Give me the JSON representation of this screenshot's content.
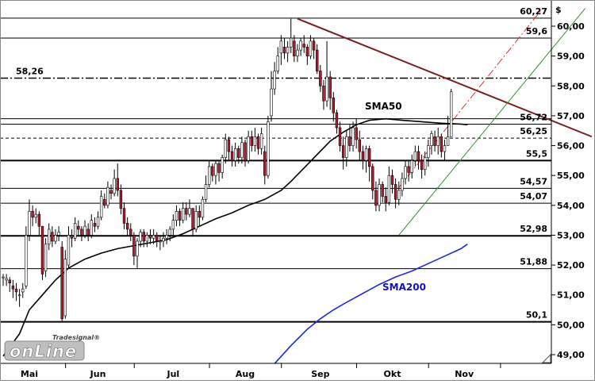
{
  "chart_data": {
    "type": "candlestick",
    "currency_symbol": "$",
    "ylim": [
      48.8,
      60.65
    ],
    "x_range": [
      0,
      164
    ],
    "x_ticks": [
      {
        "label": "Mai",
        "x": 8
      },
      {
        "label": "Jun",
        "x": 29
      },
      {
        "label": "Jul",
        "x": 52
      },
      {
        "label": "Aug",
        "x": 74
      },
      {
        "label": "Sep",
        "x": 97
      },
      {
        "label": "Okt",
        "x": 119
      },
      {
        "label": "Nov",
        "x": 141
      }
    ],
    "y_ticks": [
      49.0,
      50.0,
      51.0,
      52.0,
      53.0,
      54.0,
      55.0,
      56.0,
      57.0,
      58.0,
      59.0,
      60.0
    ],
    "y_tick_labels": [
      "49,00",
      "50,00",
      "51,00",
      "52,00",
      "53,00",
      "54,00",
      "55,00",
      "56,00",
      "57,00",
      "58,00",
      "59,00",
      "60,00"
    ],
    "levels": [
      {
        "value": 60.27,
        "label": "60,27",
        "style": "solid",
        "weight": 1
      },
      {
        "value": 59.6,
        "label": "59,6",
        "style": "solid",
        "weight": 1
      },
      {
        "value": 58.26,
        "label": "58,26",
        "style": "dashdot",
        "weight": 1.5
      },
      {
        "value": 56.72,
        "label": "56,72",
        "style": "solid",
        "weight": 1
      },
      {
        "value": 56.25,
        "label": "56,25",
        "style": "dashed",
        "weight": 1
      },
      {
        "value": 55.5,
        "label": "55,5",
        "style": "solid",
        "weight": 2
      },
      {
        "value": 54.57,
        "label": "54,57",
        "style": "solid",
        "weight": 1
      },
      {
        "value": 54.07,
        "label": "54,07",
        "style": "solid",
        "weight": 1
      },
      {
        "value": 52.98,
        "label": "52,98",
        "style": "solid",
        "weight": 2
      },
      {
        "value": 51.88,
        "label": "51,88",
        "style": "solid",
        "weight": 1
      },
      {
        "value": 50.1,
        "label": "50,1",
        "style": "solid",
        "weight": 2
      }
    ],
    "extra_levels": [
      {
        "value": 56.9
      }
    ],
    "trendlines": [
      {
        "name": "resistance",
        "color": "#7a1e1e",
        "style": "solid",
        "points": [
          [
            90,
            60.25
          ],
          [
            180,
            56.3
          ]
        ]
      },
      {
        "name": "support",
        "color": "#2f8f2f",
        "style": "solid",
        "points": [
          [
            121,
            53.0
          ],
          [
            178,
            60.6
          ]
        ]
      },
      {
        "name": "channel",
        "color": "#e03030",
        "style": "dashdot",
        "points": [
          [
            121,
            54.6
          ],
          [
            165,
            60.6
          ]
        ]
      }
    ],
    "series": [
      {
        "name": "SMA50",
        "label_color": "#000000",
        "color": "#000000",
        "points": [
          [
            0,
            48.95
          ],
          [
            5,
            49.7
          ],
          [
            8,
            50.5
          ],
          [
            12,
            51.0
          ],
          [
            16,
            51.5
          ],
          [
            20,
            51.9
          ],
          [
            25,
            52.2
          ],
          [
            30,
            52.4
          ],
          [
            35,
            52.55
          ],
          [
            40,
            52.65
          ],
          [
            45,
            52.75
          ],
          [
            50,
            52.85
          ],
          [
            55,
            53.05
          ],
          [
            60,
            53.3
          ],
          [
            65,
            53.55
          ],
          [
            70,
            53.75
          ],
          [
            75,
            54.0
          ],
          [
            80,
            54.2
          ],
          [
            85,
            54.5
          ],
          [
            88,
            54.8
          ],
          [
            92,
            55.25
          ],
          [
            96,
            55.7
          ],
          [
            100,
            56.15
          ],
          [
            104,
            56.45
          ],
          [
            108,
            56.7
          ],
          [
            112,
            56.85
          ],
          [
            117,
            56.9
          ],
          [
            122,
            56.85
          ],
          [
            128,
            56.8
          ],
          [
            134,
            56.75
          ],
          [
            140,
            56.72
          ],
          [
            142,
            56.7
          ]
        ]
      },
      {
        "name": "SMA200",
        "label_color": "#1010c0",
        "color": "#1a2ad8",
        "points": [
          [
            83,
            48.7
          ],
          [
            88,
            49.3
          ],
          [
            93,
            49.85
          ],
          [
            97,
            50.2
          ],
          [
            101,
            50.5
          ],
          [
            105,
            50.75
          ],
          [
            110,
            51.05
          ],
          [
            115,
            51.35
          ],
          [
            120,
            51.6
          ],
          [
            125,
            51.8
          ],
          [
            130,
            52.05
          ],
          [
            135,
            52.3
          ],
          [
            140,
            52.55
          ],
          [
            142,
            52.7
          ]
        ]
      }
    ],
    "candles": [
      [
        0,
        51.6,
        51.6,
        51.7,
        51.3
      ],
      [
        1,
        51.5,
        51.55,
        51.7,
        51.3
      ],
      [
        2,
        51.5,
        51.4,
        51.6,
        51.1
      ],
      [
        3,
        51.3,
        51.2,
        51.5,
        50.9
      ],
      [
        4,
        51.2,
        51.1,
        51.4,
        50.8
      ],
      [
        5,
        51.0,
        51.0,
        51.2,
        50.6
      ],
      [
        6,
        51.1,
        51.2,
        51.4,
        50.9
      ],
      [
        7,
        51.3,
        53.0,
        53.3,
        51.2
      ],
      [
        8,
        53.0,
        53.8,
        54.2,
        52.8
      ],
      [
        9,
        53.8,
        53.6,
        54.0,
        53.3
      ],
      [
        10,
        53.6,
        53.7,
        53.9,
        53.4
      ],
      [
        11,
        53.7,
        53.3,
        53.8,
        53.0
      ],
      [
        12,
        53.3,
        51.7,
        53.3,
        51.5
      ],
      [
        13,
        51.8,
        52.7,
        52.9,
        51.6
      ],
      [
        14,
        52.7,
        53.2,
        53.4,
        52.5
      ],
      [
        15,
        53.1,
        52.8,
        53.3,
        52.6
      ],
      [
        16,
        52.8,
        53.0,
        53.2,
        52.7
      ],
      [
        17,
        53.0,
        53.1,
        53.3,
        52.8
      ],
      [
        18,
        52.6,
        50.2,
        52.8,
        50.1
      ],
      [
        19,
        50.3,
        52.2,
        52.5,
        50.2
      ],
      [
        20,
        52.0,
        53.0,
        53.3,
        51.9
      ],
      [
        21,
        53.0,
        52.9,
        53.2,
        52.6
      ],
      [
        22,
        52.9,
        53.4,
        53.6,
        52.8
      ],
      [
        23,
        53.3,
        53.2,
        53.5,
        53.0
      ],
      [
        24,
        53.2,
        53.0,
        53.3,
        52.8
      ],
      [
        25,
        53.0,
        53.3,
        53.5,
        52.9
      ],
      [
        26,
        53.2,
        53.0,
        53.4,
        52.8
      ],
      [
        27,
        53.0,
        53.5,
        53.7,
        52.9
      ],
      [
        28,
        53.4,
        53.3,
        53.6,
        53.1
      ],
      [
        29,
        53.3,
        53.6,
        53.8,
        53.2
      ],
      [
        30,
        53.6,
        54.3,
        54.5,
        53.5
      ],
      [
        31,
        54.2,
        54.0,
        54.4,
        53.9
      ],
      [
        32,
        54.0,
        54.6,
        54.8,
        53.9
      ],
      [
        33,
        54.5,
        54.4,
        54.7,
        54.2
      ],
      [
        34,
        54.4,
        54.9,
        55.2,
        54.3
      ],
      [
        35,
        54.9,
        54.5,
        55.4,
        54.3
      ],
      [
        36,
        54.5,
        53.9,
        54.7,
        53.7
      ],
      [
        37,
        53.9,
        53.4,
        54.1,
        53.2
      ],
      [
        38,
        53.4,
        53.2,
        53.6,
        53.0
      ],
      [
        39,
        53.2,
        53.0,
        53.4,
        52.8
      ],
      [
        40,
        53.0,
        52.3,
        53.1,
        52.0
      ],
      [
        41,
        52.3,
        52.8,
        52.9,
        51.9
      ],
      [
        42,
        52.8,
        53.1,
        53.2,
        52.6
      ],
      [
        43,
        53.1,
        52.8,
        53.2,
        52.6
      ],
      [
        44,
        52.8,
        53.0,
        53.1,
        52.6
      ],
      [
        45,
        53.0,
        52.9,
        53.2,
        52.7
      ],
      [
        46,
        52.9,
        53.0,
        53.2,
        52.7
      ],
      [
        47,
        53.0,
        52.8,
        53.1,
        52.6
      ],
      [
        48,
        52.8,
        52.8,
        53.0,
        52.5
      ],
      [
        49,
        52.8,
        52.9,
        53.1,
        52.6
      ],
      [
        50,
        52.9,
        53.0,
        53.2,
        52.7
      ],
      [
        51,
        53.0,
        53.2,
        53.3,
        52.8
      ],
      [
        52,
        53.2,
        53.5,
        53.7,
        53.0
      ],
      [
        53,
        53.5,
        53.8,
        54.0,
        53.3
      ],
      [
        54,
        53.8,
        53.5,
        53.9,
        53.3
      ],
      [
        55,
        53.5,
        53.9,
        54.1,
        53.4
      ],
      [
        56,
        53.9,
        53.7,
        54.1,
        53.5
      ],
      [
        57,
        53.7,
        53.9,
        54.2,
        53.6
      ],
      [
        58,
        53.9,
        53.2,
        53.9,
        53.0
      ],
      [
        59,
        53.2,
        53.8,
        54.0,
        53.1
      ],
      [
        60,
        53.8,
        53.6,
        54.0,
        53.3
      ],
      [
        61,
        53.6,
        54.2,
        54.3,
        53.5
      ],
      [
        62,
        54.2,
        54.7,
        55.0,
        54.1
      ],
      [
        63,
        54.7,
        55.3,
        55.5,
        54.6
      ],
      [
        64,
        55.3,
        55.0,
        55.4,
        54.8
      ],
      [
        65,
        55.0,
        55.4,
        55.5,
        54.7
      ],
      [
        66,
        55.4,
        55.1,
        55.5,
        54.8
      ],
      [
        67,
        55.1,
        55.6,
        55.7,
        54.9
      ],
      [
        68,
        55.6,
        56.2,
        56.4,
        55.4
      ],
      [
        69,
        56.2,
        55.8,
        56.3,
        55.5
      ],
      [
        70,
        55.8,
        55.5,
        56.0,
        55.3
      ],
      [
        71,
        55.5,
        55.9,
        56.1,
        55.3
      ],
      [
        72,
        55.9,
        55.6,
        56.0,
        55.4
      ],
      [
        73,
        55.6,
        56.1,
        56.3,
        55.4
      ],
      [
        74,
        56.1,
        55.5,
        56.2,
        55.3
      ],
      [
        75,
        55.5,
        56.3,
        56.5,
        55.4
      ],
      [
        76,
        56.3,
        56.0,
        56.5,
        55.8
      ],
      [
        77,
        56.0,
        56.3,
        56.6,
        55.8
      ],
      [
        78,
        56.3,
        55.9,
        56.4,
        55.7
      ],
      [
        79,
        55.9,
        56.4,
        56.6,
        55.7
      ],
      [
        80,
        55.8,
        55.0,
        56.0,
        54.7
      ],
      [
        81,
        55.0,
        56.8,
        57.0,
        54.9
      ],
      [
        82,
        57.0,
        57.9,
        58.5,
        56.8
      ],
      [
        83,
        57.9,
        58.5,
        58.8,
        57.7
      ],
      [
        84,
        58.5,
        59.0,
        59.3,
        58.4
      ],
      [
        85,
        59.1,
        59.5,
        59.7,
        58.7
      ],
      [
        86,
        59.3,
        59.1,
        59.6,
        58.9
      ],
      [
        87,
        59.1,
        59.3,
        59.5,
        58.8
      ],
      [
        88,
        59.3,
        59.6,
        60.25,
        59.1
      ],
      [
        89,
        59.5,
        59.0,
        59.7,
        58.8
      ],
      [
        90,
        59.0,
        59.2,
        59.4,
        58.8
      ],
      [
        91,
        59.2,
        59.5,
        59.6,
        59.0
      ],
      [
        92,
        59.4,
        59.3,
        59.7,
        59.1
      ],
      [
        93,
        59.3,
        59.0,
        59.4,
        58.7
      ],
      [
        94,
        59.0,
        59.5,
        59.7,
        58.9
      ],
      [
        95,
        59.5,
        59.2,
        59.6,
        58.9
      ],
      [
        96,
        59.2,
        58.5,
        59.4,
        58.4
      ],
      [
        97,
        58.5,
        58.0,
        58.7,
        57.8
      ],
      [
        98,
        58.0,
        57.5,
        58.2,
        57.2
      ],
      [
        99,
        57.5,
        58.3,
        59.5,
        57.3
      ],
      [
        100,
        58.3,
        57.6,
        58.5,
        57.2
      ],
      [
        101,
        57.6,
        57.1,
        57.8,
        56.8
      ],
      [
        102,
        57.1,
        56.6,
        57.2,
        56.4
      ],
      [
        103,
        56.6,
        56.0,
        56.8,
        55.8
      ],
      [
        104,
        56.0,
        55.6,
        56.3,
        55.2
      ],
      [
        105,
        55.6,
        56.3,
        56.5,
        55.3
      ],
      [
        106,
        56.3,
        56.0,
        56.7,
        55.8
      ],
      [
        107,
        56.0,
        56.6,
        56.8,
        55.8
      ],
      [
        108,
        56.6,
        56.2,
        56.9,
        55.9
      ],
      [
        109,
        56.2,
        55.8,
        56.5,
        55.5
      ],
      [
        110,
        55.8,
        55.5,
        56.0,
        55.2
      ],
      [
        111,
        55.5,
        55.9,
        56.0,
        55.1
      ],
      [
        112,
        55.9,
        55.3,
        56.0,
        54.8
      ],
      [
        113,
        55.3,
        54.5,
        55.4,
        54.2
      ],
      [
        114,
        54.5,
        54.0,
        54.8,
        53.8
      ],
      [
        115,
        54.0,
        54.7,
        54.9,
        53.8
      ],
      [
        116,
        54.7,
        54.3,
        54.8,
        54.1
      ],
      [
        117,
        54.3,
        54.1,
        54.6,
        53.8
      ],
      [
        118,
        54.1,
        55.0,
        55.3,
        54.0
      ],
      [
        119,
        55.0,
        54.7,
        55.2,
        54.4
      ],
      [
        120,
        54.7,
        54.2,
        54.9,
        53.9
      ],
      [
        121,
        54.2,
        54.5,
        54.8,
        54.0
      ],
      [
        122,
        54.5,
        54.9,
        55.1,
        54.3
      ],
      [
        123,
        54.9,
        55.3,
        55.5,
        54.7
      ],
      [
        124,
        55.3,
        55.1,
        55.5,
        54.8
      ],
      [
        125,
        55.1,
        55.5,
        55.7,
        54.9
      ],
      [
        126,
        55.5,
        55.8,
        56.0,
        55.3
      ],
      [
        127,
        55.8,
        55.5,
        56.0,
        55.2
      ],
      [
        128,
        55.5,
        55.2,
        55.7,
        54.9
      ],
      [
        129,
        55.2,
        55.6,
        55.8,
        55.0
      ],
      [
        130,
        55.6,
        56.0,
        56.2,
        55.3
      ],
      [
        131,
        56.0,
        56.4,
        56.5,
        55.7
      ],
      [
        132,
        56.3,
        56.0,
        56.5,
        55.8
      ],
      [
        133,
        56.0,
        56.3,
        56.6,
        55.7
      ],
      [
        134,
        56.3,
        55.8,
        56.4,
        55.6
      ],
      [
        135,
        55.8,
        56.0,
        56.2,
        55.5
      ],
      [
        136,
        56.0,
        56.3,
        57.0,
        56.1
      ],
      [
        137,
        56.3,
        57.8,
        57.9,
        56.3
      ]
    ]
  }
}
